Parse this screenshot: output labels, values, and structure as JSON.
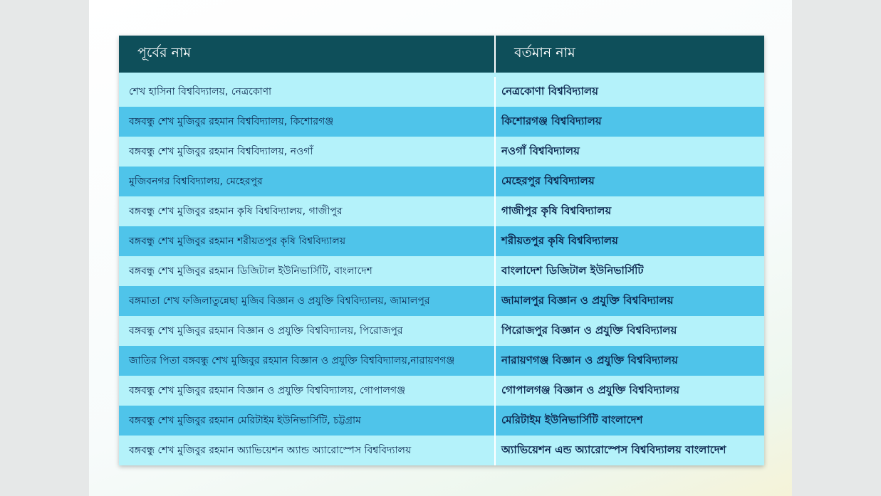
{
  "table": {
    "headers": [
      "পূর্বের নাম",
      "বর্তমান নাম"
    ],
    "rows": [
      {
        "former": "শেখ হাসিনা বিশ্ববিদ্যালয়, নেত্রকোণা",
        "current": "নেত্রকোণা বিশ্ববিদ্যালয়"
      },
      {
        "former": "বঙ্গবন্ধু শেখ মুজিবুর রহমান বিশ্ববিদ্যালয়, কিশোরগঞ্জ",
        "current": "কিশোরগঞ্জ বিশ্ববিদ্যালয়"
      },
      {
        "former": "বঙ্গবন্ধু শেখ মুজিবুর রহমান বিশ্ববিদ্যালয়, নওগাঁ",
        "current": "নওগাঁ বিশ্ববিদ্যালয়"
      },
      {
        "former": "মুজিবনগর বিশ্ববিদ্যালয়, মেহেরপুর",
        "current": "মেহেরপুর বিশ্ববিদ্যালয়"
      },
      {
        "former": "বঙ্গবন্ধু শেখ মুজিবুর রহমান কৃষি বিশ্ববিদ্যালয়, গাজীপুর",
        "current": "গাজীপুর কৃষি বিশ্ববিদ্যালয়"
      },
      {
        "former": "বঙ্গবন্ধু শেখ মুজিবুর রহমান শরীয়তপুর কৃষি বিশ্ববিদ্যালয়",
        "current": "শরীয়তপুর কৃষি বিশ্ববিদ্যালয়"
      },
      {
        "former": "বঙ্গবন্ধু শেখ মুজিবুর রহমান ডিজিটাল ইউনিভার্সিটি, বাংলাদেশ",
        "current": "বাংলাদেশ ডিজিটাল ইউনিভার্সিটি"
      },
      {
        "former": "বঙ্গমাতা শেখ ফজিলাতুন্নেছা মুজিব বিজ্ঞান ও প্রযুক্তি বিশ্ববিদ্যালয়, জামালপুর",
        "current": "জামালপুর বিজ্ঞান ও প্রযুক্তি বিশ্ববিদ্যালয়"
      },
      {
        "former": "বঙ্গবন্ধু শেখ মুজিবুর রহমান বিজ্ঞান ও প্রযুক্তি বিশ্ববিদ্যালয়, পিরোজপুর",
        "current": "পিরোজপুর  বিজ্ঞান ও প্রযুক্তি বিশ্ববিদ্যালয়"
      },
      {
        "former": "জাতির পিতা বঙ্গবন্ধু শেখ মুজিবুর রহমান বিজ্ঞান ও প্রযুক্তি বিশ্ববিদ্যালয়,নারায়ণগঞ্জ",
        "current": "নারায়ণগঞ্জ বিজ্ঞান ও প্রযুক্তি বিশ্ববিদ্যালয়"
      },
      {
        "former": "বঙ্গবন্ধু শেখ মুজিবুর রহমান বিজ্ঞান ও প্রযুক্তি বিশ্ববিদ্যালয়, গোপালগঞ্জ",
        "current": "গোপালগঞ্জ বিজ্ঞান ও প্রযুক্তি বিশ্ববিদ্যালয়"
      },
      {
        "former": "বঙ্গবন্ধু শেখ মুজিবুর রহমান মেরিটাইম ইউনিভার্সিটি, চট্টগ্রাম",
        "current": "মেরিটাইম ইউনিভার্সিটি বাংলাদেশ"
      },
      {
        "former": "বঙ্গবন্ধু শেখ মুজিবুর রহমান অ্যাভিয়েশন অ্যান্ড অ্যারোস্পেস বিশ্ববিদ্যালয়",
        "current": "অ্যাভিয়েশন এন্ড অ্যারোস্পেস বিশ্ববিদ্যালয় বাংলাদেশ"
      }
    ]
  },
  "colors": {
    "header": "#0e4f5a",
    "row_light": "#b4f2fa",
    "row_dark": "#4fc4ea",
    "text": "#0d2850"
  }
}
